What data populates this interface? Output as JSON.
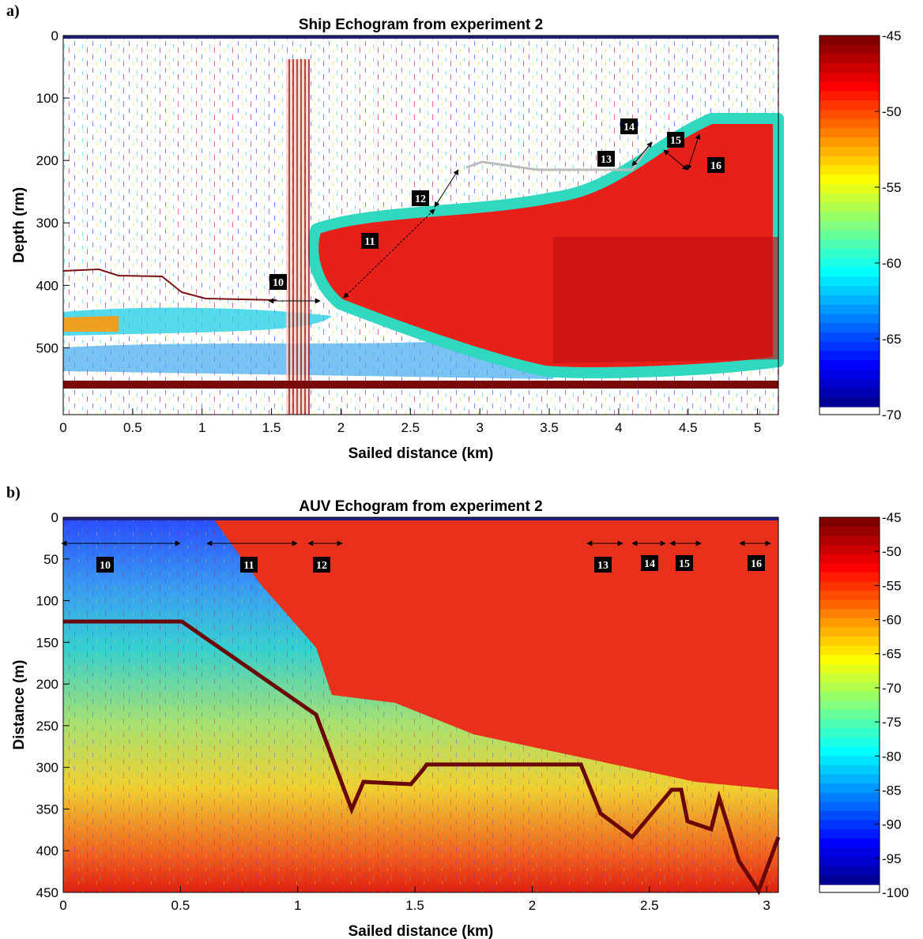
{
  "chart_data": [
    {
      "type": "heatmap",
      "panel": "a)",
      "title": "Ship Echogram from experiment 2",
      "x_label": "Sailed distance (km)",
      "y_label": "Depth (rm)",
      "xlim": [
        0,
        5.15
      ],
      "xticks": [
        0,
        0.5,
        1,
        1.5,
        2,
        2.5,
        3,
        3.5,
        4,
        4.5,
        5
      ],
      "ylim": [
        607,
        0
      ],
      "yticks": [
        0,
        100,
        200,
        300,
        400,
        500
      ],
      "colormap": "jet",
      "colorbar": {
        "lim": [
          -70,
          -45
        ],
        "ticks": [
          -45,
          -50,
          -55,
          -60,
          -65,
          -70
        ]
      },
      "annotations": [
        "10",
        "11",
        "12",
        "13",
        "14",
        "15",
        "16"
      ]
    },
    {
      "type": "heatmap",
      "panel": "b)",
      "title": "AUV Echogram from experiment 2",
      "x_label": "Sailed distance (km)",
      "y_label": "Distance (m)",
      "xlim": [
        0,
        3.05
      ],
      "xticks": [
        0,
        0.5,
        1,
        1.5,
        2,
        2.5,
        3
      ],
      "ylim": [
        450,
        0
      ],
      "yticks": [
        0,
        50,
        100,
        150,
        200,
        250,
        300,
        350,
        400,
        450
      ],
      "colormap": "jet",
      "colorbar": {
        "lim": [
          -100,
          -45
        ],
        "ticks": [
          -45,
          -50,
          -55,
          -60,
          -65,
          -70,
          -75,
          -80,
          -85,
          -90,
          -95,
          -100
        ]
      },
      "annotations": [
        "10",
        "11",
        "12",
        "13",
        "14",
        "15",
        "16"
      ]
    }
  ]
}
